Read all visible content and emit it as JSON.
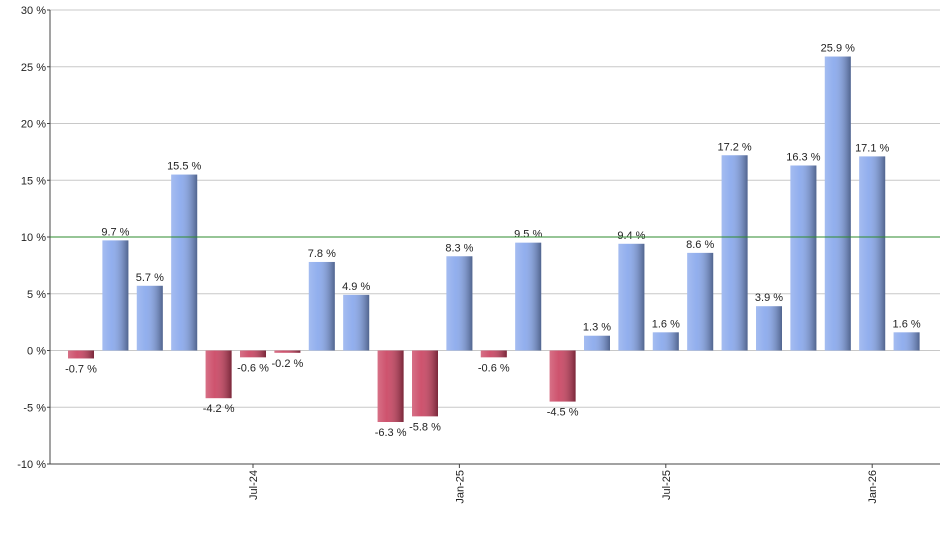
{
  "chart_data": {
    "type": "bar",
    "categories": [
      null,
      null,
      null,
      null,
      null,
      "Jul-24",
      null,
      null,
      null,
      null,
      null,
      "Jan-25",
      null,
      null,
      null,
      null,
      null,
      "Jul-25",
      null,
      null,
      null,
      null,
      null,
      "Jan-26",
      null
    ],
    "values": [
      -0.7,
      9.7,
      5.7,
      15.5,
      -4.2,
      -0.6,
      -0.2,
      7.8,
      4.9,
      -6.3,
      -5.8,
      8.3,
      -0.6,
      9.5,
      -4.5,
      1.3,
      9.4,
      1.6,
      8.6,
      17.2,
      3.9,
      16.3,
      25.9,
      17.1,
      1.6
    ],
    "value_labels": [
      "-0.7 %",
      "9.7 %",
      "5.7 %",
      "15.5 %",
      "-4.2 %",
      "-0.6 %",
      "-0.2 %",
      "7.8 %",
      "4.9 %",
      "-6.3 %",
      "-5.8 %",
      "8.3 %",
      "-0.6 %",
      "9.5 %",
      "-4.5 %",
      "1.3 %",
      "9.4 %",
      "1.6 %",
      "8.6 %",
      "17.2 %",
      "3.9 %",
      "16.3 %",
      "25.9 %",
      "17.1 %",
      "1.6 %"
    ],
    "positive_color": "#86a6ec",
    "negative_color": "#c9405e",
    "reference_line": 10,
    "reference_color": "#2e8b2e",
    "ylim": [
      -10,
      30
    ],
    "yticks": [
      {
        "value": -10,
        "label": "-10 %"
      },
      {
        "value": -5,
        "label": "-5 %"
      },
      {
        "value": 0,
        "label": "0 %"
      },
      {
        "value": 5,
        "label": "5 %"
      },
      {
        "value": 10,
        "label": "10 %"
      },
      {
        "value": 15,
        "label": "15 %"
      },
      {
        "value": 20,
        "label": "20 %"
      },
      {
        "value": 25,
        "label": "25 %"
      },
      {
        "value": 30,
        "label": "30 %"
      }
    ],
    "grid": true
  }
}
